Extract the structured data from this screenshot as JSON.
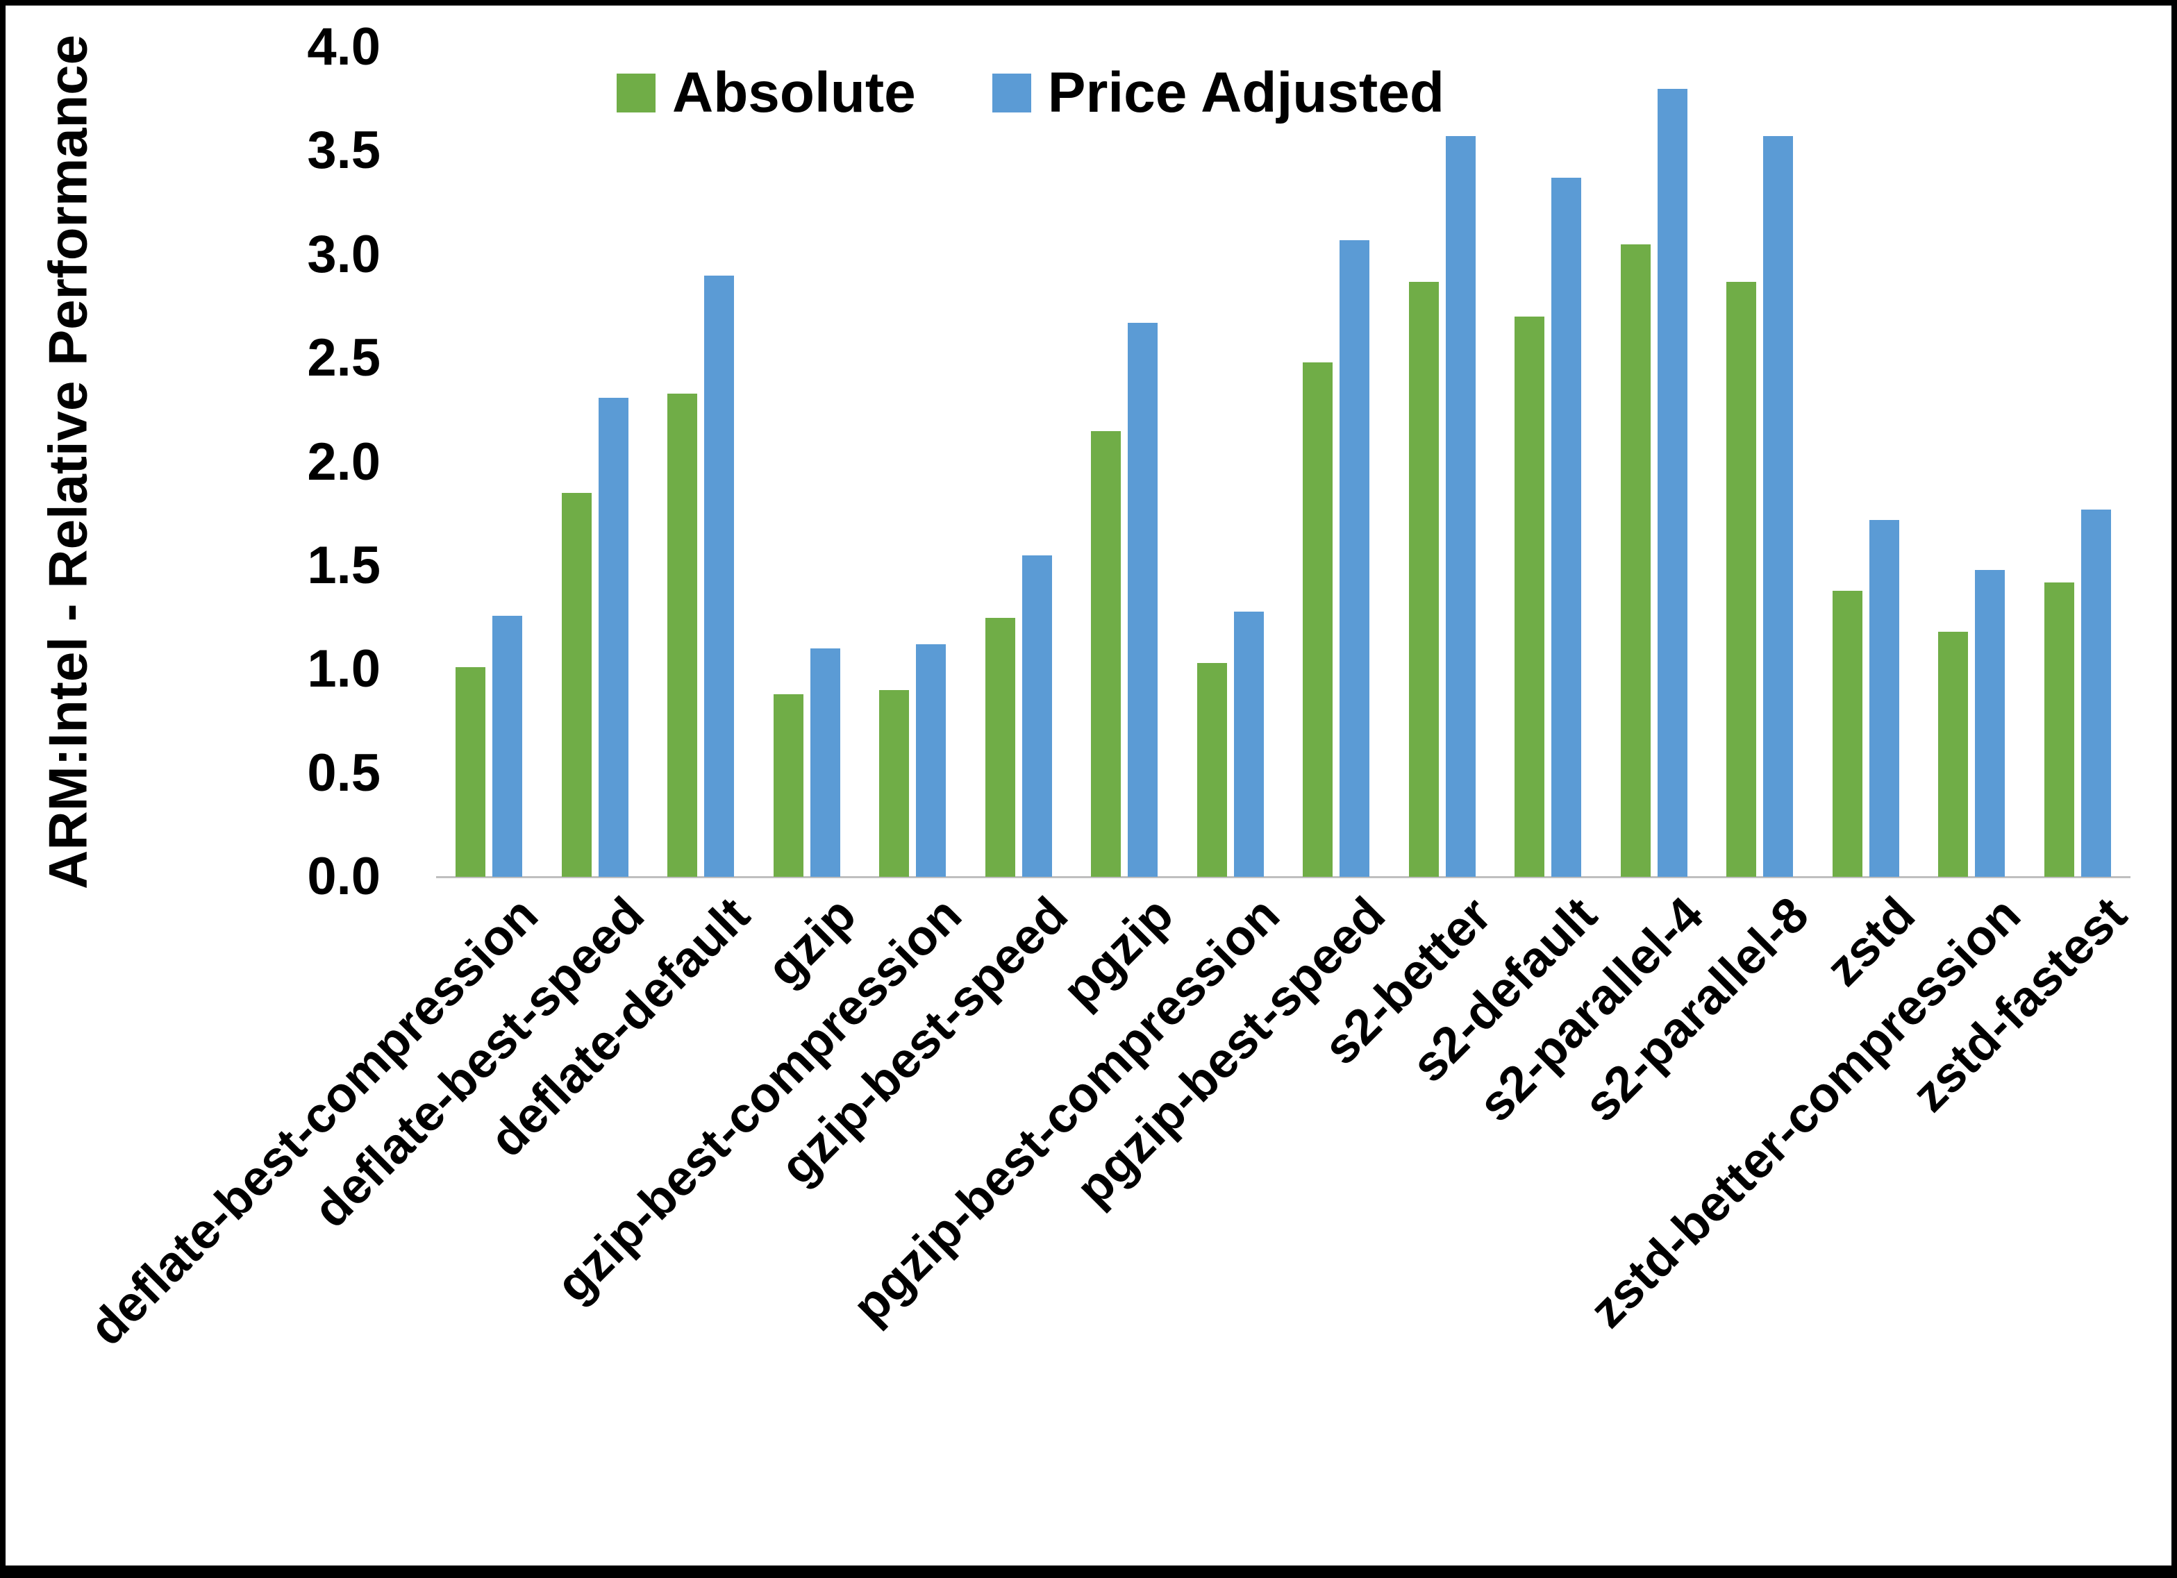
{
  "chart_data": {
    "type": "bar",
    "title": "",
    "xlabel": "",
    "ylabel": "ARM:Intel - Relative Performance",
    "ylim": [
      0,
      4.0
    ],
    "ytick_step": 0.5,
    "grid": false,
    "legend_position": "top",
    "categories": [
      "deflate-best-compression",
      "deflate-best-speed",
      "deflate-default",
      "gzip",
      "gzip-best-compression",
      "gzip-best-speed",
      "pgzip",
      "pgzip-best-compression",
      "pgzip-best-speed",
      "s2-better",
      "s2-default",
      "s2-parallel-4",
      "s2-parallel-8",
      "zstd",
      "zstd-better-compression",
      "zstd-fastest"
    ],
    "series": [
      {
        "name": "Absolute",
        "color": "#70AD47",
        "values": [
          1.01,
          1.85,
          2.33,
          0.88,
          0.9,
          1.25,
          2.15,
          1.03,
          2.48,
          2.87,
          2.7,
          3.05,
          2.87,
          1.38,
          1.18,
          1.42
        ]
      },
      {
        "name": "Price Adjusted",
        "color": "#5B9BD5",
        "values": [
          1.26,
          2.31,
          2.9,
          1.1,
          1.12,
          1.55,
          2.67,
          1.28,
          3.07,
          3.57,
          3.37,
          3.8,
          3.57,
          1.72,
          1.48,
          1.77
        ]
      }
    ]
  }
}
